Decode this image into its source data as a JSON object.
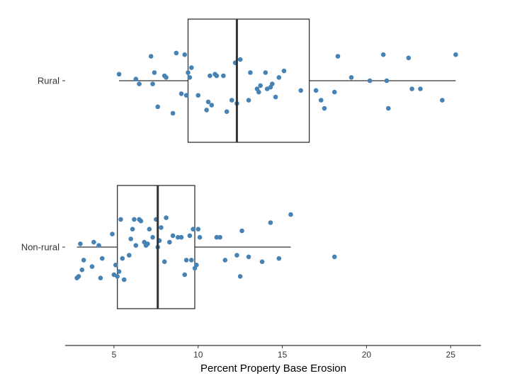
{
  "chart_data": {
    "type": "boxplot",
    "xlabel": "Percent Property Base Erosion",
    "xlim": [
      2.1,
      26.8
    ],
    "xticks": [
      5,
      10,
      15,
      20,
      25
    ],
    "grid": false,
    "colors": {
      "point": "#4682B4",
      "box": "#333333"
    },
    "categories": [
      "Rural",
      "Non-rural"
    ],
    "groups": [
      {
        "name": "Rural",
        "box": {
          "whisker_low": 5.3,
          "q1": 9.4,
          "median": 12.3,
          "q3": 16.6,
          "whisker_high": 25.3
        },
        "points": [
          [
            5.3,
            0.04
          ],
          [
            6.5,
            -0.02
          ],
          [
            6.3,
            0.01
          ],
          [
            7.2,
            0.15
          ],
          [
            7.3,
            -0.02
          ],
          [
            7.4,
            0.05
          ],
          [
            7.6,
            -0.16
          ],
          [
            8.0,
            0.03
          ],
          [
            8.1,
            0.02
          ],
          [
            8.5,
            -0.2
          ],
          [
            8.7,
            0.17
          ],
          [
            9.0,
            -0.08
          ],
          [
            9.2,
            0.16
          ],
          [
            9.3,
            -0.09
          ],
          [
            9.4,
            0.05
          ],
          [
            9.5,
            0.02
          ],
          [
            9.6,
            0.08
          ],
          [
            10.0,
            -0.09
          ],
          [
            10.5,
            -0.18
          ],
          [
            10.6,
            -0.13
          ],
          [
            10.7,
            0.03
          ],
          [
            10.8,
            -0.15
          ],
          [
            11.0,
            0.04
          ],
          [
            11.1,
            0.03
          ],
          [
            11.5,
            0.03
          ],
          [
            11.7,
            -0.19
          ],
          [
            12.0,
            -0.12
          ],
          [
            12.2,
            0.11
          ],
          [
            12.3,
            -0.14
          ],
          [
            12.5,
            0.13
          ],
          [
            13.0,
            -0.12
          ],
          [
            13.1,
            0.05
          ],
          [
            13.5,
            -0.05
          ],
          [
            13.6,
            -0.07
          ],
          [
            13.7,
            -0.03
          ],
          [
            14.0,
            0.05
          ],
          [
            14.1,
            -0.05
          ],
          [
            14.3,
            -0.04
          ],
          [
            14.4,
            -0.02
          ],
          [
            14.6,
            -0.1
          ],
          [
            14.8,
            0.02
          ],
          [
            15.1,
            0.06
          ],
          [
            16.1,
            -0.06
          ],
          [
            17.0,
            -0.06
          ],
          [
            17.3,
            -0.12
          ],
          [
            17.5,
            -0.17
          ],
          [
            18.1,
            -0.07
          ],
          [
            18.3,
            0.15
          ],
          [
            19.1,
            0.02
          ],
          [
            20.2,
            0.0
          ],
          [
            21.0,
            0.16
          ],
          [
            21.2,
            0.0
          ],
          [
            21.3,
            -0.17
          ],
          [
            22.5,
            0.14
          ],
          [
            22.7,
            -0.05
          ],
          [
            23.2,
            -0.05
          ],
          [
            24.5,
            -0.12
          ],
          [
            25.3,
            0.16
          ]
        ]
      },
      {
        "name": "Non-rural",
        "box": {
          "whisker_low": 2.8,
          "q1": 5.2,
          "median": 7.6,
          "q3": 9.8,
          "whisker_high": 15.5
        },
        "points": [
          [
            2.8,
            -0.19
          ],
          [
            2.9,
            -0.18
          ],
          [
            3.0,
            0.02
          ],
          [
            3.1,
            -0.14
          ],
          [
            3.2,
            -0.08
          ],
          [
            3.7,
            -0.12
          ],
          [
            3.8,
            0.03
          ],
          [
            4.1,
            0.01
          ],
          [
            4.2,
            -0.19
          ],
          [
            4.3,
            -0.07
          ],
          [
            4.9,
            0.08
          ],
          [
            5.0,
            -0.17
          ],
          [
            5.1,
            -0.11
          ],
          [
            5.2,
            -0.18
          ],
          [
            5.3,
            -0.15
          ],
          [
            5.4,
            0.17
          ],
          [
            5.5,
            -0.07
          ],
          [
            5.6,
            -0.2
          ],
          [
            5.9,
            -0.05
          ],
          [
            6.0,
            0.05
          ],
          [
            6.1,
            0.11
          ],
          [
            6.2,
            0.17
          ],
          [
            6.3,
            0.01
          ],
          [
            6.5,
            0.17
          ],
          [
            6.6,
            0.16
          ],
          [
            6.8,
            0.03
          ],
          [
            6.9,
            0.01
          ],
          [
            7.0,
            0.02
          ],
          [
            7.1,
            0.11
          ],
          [
            7.3,
            0.06
          ],
          [
            7.5,
            0.17
          ],
          [
            7.6,
            0.0
          ],
          [
            7.7,
            0.04
          ],
          [
            7.8,
            0.12
          ],
          [
            8.0,
            -0.09
          ],
          [
            8.1,
            0.18
          ],
          [
            8.3,
            0.03
          ],
          [
            8.5,
            0.07
          ],
          [
            8.8,
            0.06
          ],
          [
            9.0,
            0.06
          ],
          [
            9.2,
            -0.17
          ],
          [
            9.3,
            -0.08
          ],
          [
            9.5,
            0.07
          ],
          [
            9.6,
            -0.08
          ],
          [
            9.7,
            0.11
          ],
          [
            9.8,
            -0.13
          ],
          [
            9.9,
            -0.11
          ],
          [
            10.0,
            0.11
          ],
          [
            10.1,
            0.06
          ],
          [
            11.1,
            0.06
          ],
          [
            11.3,
            0.06
          ],
          [
            11.6,
            -0.08
          ],
          [
            12.3,
            -0.05
          ],
          [
            12.5,
            -0.18
          ],
          [
            12.6,
            0.1
          ],
          [
            13.0,
            -0.06
          ],
          [
            13.8,
            -0.09
          ],
          [
            14.3,
            0.15
          ],
          [
            14.8,
            -0.07
          ],
          [
            15.5,
            0.2
          ],
          [
            18.1,
            -0.06
          ]
        ]
      }
    ]
  }
}
